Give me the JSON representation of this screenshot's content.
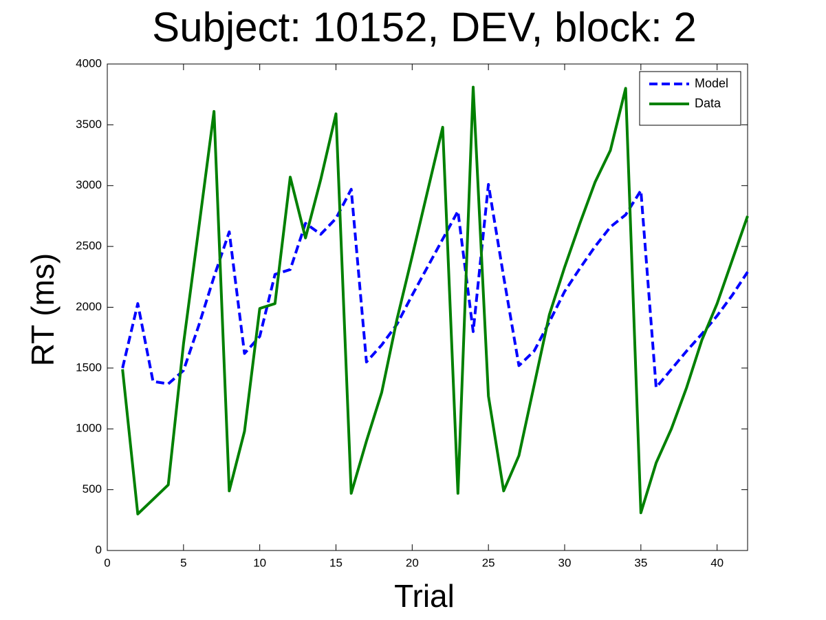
{
  "chart_data": {
    "type": "line",
    "title": "Subject: 10152, DEV, block: 2",
    "x_label": "Trial",
    "y_label": "RT (ms)",
    "x": [
      1,
      2,
      3,
      4,
      5,
      6,
      7,
      8,
      9,
      10,
      11,
      12,
      13,
      14,
      15,
      16,
      17,
      18,
      19,
      20,
      21,
      22,
      23,
      24,
      25,
      26,
      27,
      28,
      29,
      30,
      31,
      32,
      33,
      34,
      35,
      36,
      37,
      38,
      39,
      40,
      41,
      42
    ],
    "series": [
      {
        "name": "Model",
        "color": "#0000ff",
        "line_style": "dashed",
        "values": [
          1500,
          2030,
          1390,
          1370,
          1480,
          1850,
          2250,
          2620,
          1620,
          1760,
          2270,
          2310,
          2690,
          2600,
          2730,
          2970,
          1550,
          1690,
          1860,
          2100,
          2330,
          2560,
          2790,
          1800,
          3010,
          2250,
          1520,
          1640,
          1880,
          2130,
          2320,
          2500,
          2660,
          2760,
          2960,
          1340,
          1490,
          1640,
          1780,
          1930,
          2100,
          2290
        ]
      },
      {
        "name": "Data",
        "color": "#008000",
        "line_style": "solid",
        "values": [
          1490,
          300,
          420,
          540,
          1700,
          2650,
          3610,
          490,
          980,
          1990,
          2030,
          3070,
          2570,
          3050,
          3590,
          470,
          900,
          1300,
          1900,
          2420,
          2950,
          3480,
          470,
          3810,
          1270,
          490,
          780,
          1360,
          1940,
          2330,
          2690,
          3030,
          3290,
          3800,
          310,
          720,
          1000,
          1340,
          1730,
          2030,
          2390,
          2750
        ]
      }
    ],
    "xlim": [
      0,
      42
    ],
    "xticks": [
      0,
      5,
      10,
      15,
      20,
      25,
      30,
      35,
      40
    ],
    "ylim": [
      0,
      4000
    ],
    "yticks": [
      0,
      500,
      1000,
      1500,
      2000,
      2500,
      3000,
      3500,
      4000
    ],
    "legend": "top-right"
  }
}
